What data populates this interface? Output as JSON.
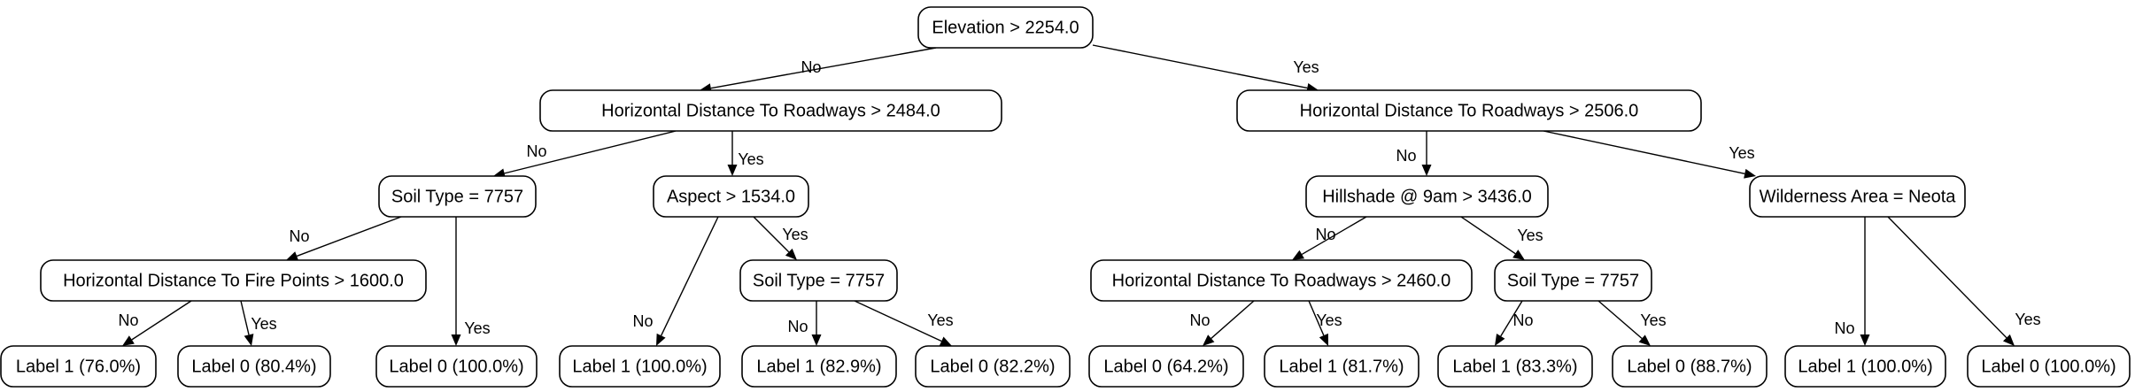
{
  "tree": {
    "nodes": [
      {
        "id": "n0",
        "label": "Elevation > 2254.0"
      },
      {
        "id": "n1",
        "label": "Horizontal Distance To Roadways > 2484.0"
      },
      {
        "id": "n2",
        "label": "Horizontal Distance To Roadways > 2506.0"
      },
      {
        "id": "n3",
        "label": "Soil Type = 7757"
      },
      {
        "id": "n4",
        "label": "Aspect > 1534.0"
      },
      {
        "id": "n5",
        "label": "Hillshade @ 9am > 3436.0"
      },
      {
        "id": "n6",
        "label": "Wilderness Area = Neota"
      },
      {
        "id": "n7",
        "label": "Horizontal Distance To Fire Points > 1600.0"
      },
      {
        "id": "n8",
        "label": "Soil Type = 7757"
      },
      {
        "id": "n9",
        "label": "Horizontal Distance To Roadways > 2460.0"
      },
      {
        "id": "n10",
        "label": "Soil Type = 7757"
      },
      {
        "id": "l1",
        "label": "Label 1 (76.0%)"
      },
      {
        "id": "l2",
        "label": "Label 0 (80.4%)"
      },
      {
        "id": "l3",
        "label": "Label 0 (100.0%)"
      },
      {
        "id": "l4",
        "label": "Label 1 (100.0%)"
      },
      {
        "id": "l5",
        "label": "Label 1 (82.9%)"
      },
      {
        "id": "l6",
        "label": "Label 0 (82.2%)"
      },
      {
        "id": "l7",
        "label": "Label 0 (64.2%)"
      },
      {
        "id": "l8",
        "label": "Label 1 (81.7%)"
      },
      {
        "id": "l9",
        "label": "Label 1 (83.3%)"
      },
      {
        "id": "l10",
        "label": "Label 0 (88.7%)"
      },
      {
        "id": "l11",
        "label": "Label 1 (100.0%)"
      },
      {
        "id": "l12",
        "label": "Label 0 (100.0%)"
      }
    ],
    "edges": [
      {
        "from": "n0",
        "to": "n1",
        "label": "No"
      },
      {
        "from": "n0",
        "to": "n2",
        "label": "Yes"
      },
      {
        "from": "n1",
        "to": "n3",
        "label": "No"
      },
      {
        "from": "n1",
        "to": "n4",
        "label": "Yes"
      },
      {
        "from": "n2",
        "to": "n5",
        "label": "No"
      },
      {
        "from": "n2",
        "to": "n6",
        "label": "Yes"
      },
      {
        "from": "n3",
        "to": "n7",
        "label": "No"
      },
      {
        "from": "n3",
        "to": "l3",
        "label": "Yes"
      },
      {
        "from": "n4",
        "to": "l4",
        "label": "No"
      },
      {
        "from": "n4",
        "to": "n8",
        "label": "Yes"
      },
      {
        "from": "n5",
        "to": "n9",
        "label": "No"
      },
      {
        "from": "n5",
        "to": "n10",
        "label": "Yes"
      },
      {
        "from": "n6",
        "to": "l11",
        "label": "No"
      },
      {
        "from": "n6",
        "to": "l12",
        "label": "Yes"
      },
      {
        "from": "n7",
        "to": "l1",
        "label": "No"
      },
      {
        "from": "n7",
        "to": "l2",
        "label": "Yes"
      },
      {
        "from": "n8",
        "to": "l5",
        "label": "No"
      },
      {
        "from": "n8",
        "to": "l6",
        "label": "Yes"
      },
      {
        "from": "n9",
        "to": "l7",
        "label": "No"
      },
      {
        "from": "n9",
        "to": "l8",
        "label": "Yes"
      },
      {
        "from": "n10",
        "to": "l9",
        "label": "No"
      },
      {
        "from": "n10",
        "to": "l10",
        "label": "Yes"
      }
    ]
  }
}
